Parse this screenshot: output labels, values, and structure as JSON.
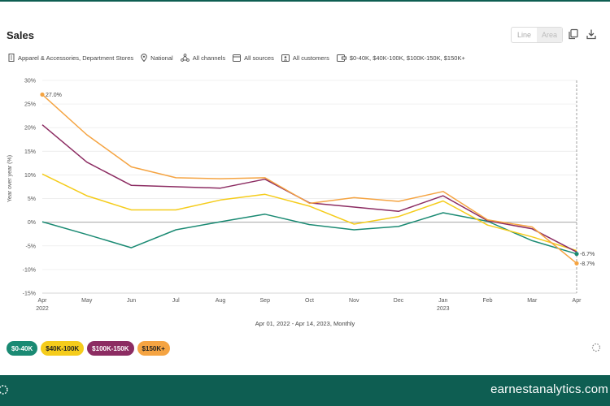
{
  "header": {
    "title": "Sales",
    "view_toggle": {
      "line": "Line",
      "area": "Area"
    }
  },
  "filters": {
    "category": "Apparel & Accessories, Department Stores",
    "geo": "National",
    "channels": "All channels",
    "sources": "All sources",
    "customers": "All customers",
    "income": "$0-40K, $40K-100K, $100K-150K, $150K+"
  },
  "caption": "Apr 01, 2022 - Apr 14, 2023, Monthly",
  "footer": {
    "brand": "earnestanalytics.com"
  },
  "chart_data": {
    "type": "line",
    "ylabel": "Year over year (%)",
    "xlabel": "",
    "x": [
      "Apr",
      "May",
      "Jun",
      "Jul",
      "Aug",
      "Sep",
      "Oct",
      "Nov",
      "Dec",
      "Jan",
      "Feb",
      "Mar",
      "Apr"
    ],
    "x_years": [
      "2022",
      "",
      "",
      "",
      "",
      "",
      "",
      "",
      "",
      "2023",
      "",
      "",
      ""
    ],
    "yticks": [
      "30%",
      "25%",
      "20%",
      "15%",
      "10%",
      "5%",
      "0%",
      "-5%",
      "-10%",
      "-15%"
    ],
    "ylim": [
      -15,
      30
    ],
    "grid": true,
    "series": [
      {
        "name": "$0-40K",
        "color": "#1a8a73",
        "values": [
          0.1,
          -2.6,
          -5.4,
          -1.6,
          0.1,
          1.7,
          -0.5,
          -1.6,
          -0.9,
          2.0,
          0.2,
          -3.9,
          -6.7
        ]
      },
      {
        "name": "$40K-100K",
        "color": "#f5cc1b",
        "values": [
          10.2,
          5.6,
          2.6,
          2.6,
          4.7,
          5.9,
          3.4,
          -0.4,
          1.2,
          4.5,
          -0.6,
          -3.1,
          -6.0
        ]
      },
      {
        "name": "$100K-150K",
        "color": "#8c2c62",
        "values": [
          20.6,
          12.7,
          7.8,
          7.5,
          7.2,
          9.1,
          4.1,
          3.2,
          2.3,
          5.6,
          0.3,
          -1.4,
          -6.3
        ]
      },
      {
        "name": "$150K+",
        "color": "#f5a442",
        "values": [
          27.0,
          18.5,
          11.7,
          9.4,
          9.2,
          9.4,
          4.0,
          5.2,
          4.4,
          6.5,
          0.5,
          -1.0,
          -8.7
        ]
      }
    ],
    "annotations": [
      {
        "series": "$150K+",
        "point": "first",
        "text": "27.0%"
      },
      {
        "series": "$0-40K",
        "point": "last",
        "text": "-6.7%"
      },
      {
        "series": "$150K+",
        "point": "last",
        "text": "-8.7%"
      }
    ]
  },
  "legend": [
    {
      "label": "$0-40K",
      "bg": "#1a8a73",
      "fg": "#ffffff"
    },
    {
      "label": "$40K-100K",
      "bg": "#f5cc1b",
      "fg": "#222222"
    },
    {
      "label": "$100K-150K",
      "bg": "#8c2c62",
      "fg": "#ffffff"
    },
    {
      "label": "$150K+",
      "bg": "#f5a442",
      "fg": "#222222"
    }
  ]
}
